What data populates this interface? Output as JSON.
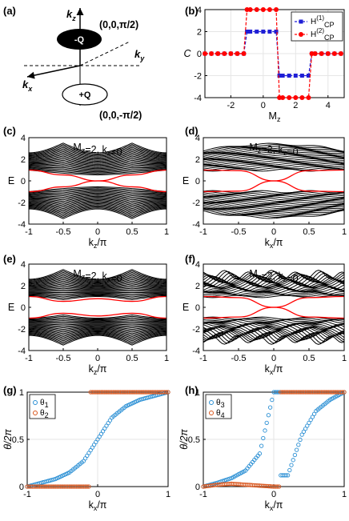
{
  "panel_labels": [
    "(a)",
    "(b)",
    "(c)",
    "(d)",
    "(e)",
    "(f)",
    "(g)",
    "(h)"
  ],
  "diagram": {
    "axis_kz": "k",
    "axis_kz_sub": "z",
    "axis_ky": "k",
    "axis_ky_sub": "y",
    "axis_kx": "k",
    "axis_kx_sub": "x",
    "top_point": "(0,0,π/2)",
    "top_charge": "-Q",
    "bottom_point": "(0,0,-π/2)",
    "bottom_charge": "+Q"
  },
  "colors": {
    "black": "#000000",
    "red": "#ff0000",
    "blue": "#1f1fd6",
    "orange": "#d9541a",
    "theta_blue": "#2a8fd4",
    "grid": "#e6e6e6"
  },
  "chart_data": [
    {
      "panel": "(b)",
      "type": "line",
      "ylabel": "C",
      "xlabel": "M",
      "xlabel_sub": "z",
      "xlim": [
        -3.6,
        5.0
      ],
      "ylim": [
        -4,
        4
      ],
      "xticks": [
        "-2",
        "0",
        "2",
        "4"
      ],
      "yticks": [
        "-4",
        "-2",
        "0",
        "2",
        "4"
      ],
      "grid": true,
      "legend_position": "top-right",
      "series": [
        {
          "name": "H",
          "name_sup": "(1)",
          "name_sub": "CP",
          "marker": "square",
          "color": "blue",
          "x": [
            -3.6,
            -3.2,
            -2.8,
            -2.4,
            -2.0,
            -1.6,
            -1.2,
            -1.0,
            -0.8,
            -0.4,
            0.0,
            0.4,
            0.8,
            1.0,
            1.2,
            1.6,
            2.0,
            2.4,
            2.8,
            3.0,
            3.2,
            3.6,
            4.0,
            4.4,
            4.8
          ],
          "y": [
            0,
            0,
            0,
            0,
            0,
            0,
            0,
            2,
            2,
            2,
            2,
            2,
            2,
            -2,
            -2,
            -2,
            -2,
            -2,
            -2,
            0,
            0,
            0,
            0,
            0,
            0
          ]
        },
        {
          "name": "H",
          "name_sup": "(2)",
          "name_sub": "CP",
          "marker": "circle",
          "color": "red",
          "x": [
            -3.6,
            -3.2,
            -2.8,
            -2.4,
            -2.0,
            -1.6,
            -1.2,
            -1.0,
            -0.8,
            -0.4,
            0.0,
            0.4,
            0.8,
            1.0,
            1.2,
            1.6,
            2.0,
            2.4,
            2.8,
            3.0,
            3.2,
            3.6,
            4.0,
            4.4,
            4.8
          ],
          "y": [
            0,
            0,
            0,
            0,
            0,
            0,
            0,
            4,
            4,
            4,
            4,
            4,
            4,
            -4,
            -4,
            -4,
            -4,
            -4,
            -4,
            0,
            0,
            0,
            0,
            0,
            0
          ]
        }
      ]
    },
    {
      "panel": "(c)",
      "type": "line",
      "annotation_1": "M",
      "annotation_1_sub": "z",
      "annotation_2": "=2, k",
      "annotation_2_sub": "x",
      "annotation_3": "=0",
      "ylabel": "E",
      "xlabel": "k",
      "xlabel_sub": "z",
      "xlabel_tail": "/π",
      "xlim": [
        -1,
        1
      ],
      "ylim": [
        -4,
        4
      ],
      "xticks": [
        "-1",
        "-0.5",
        "0",
        "0.5",
        "1"
      ],
      "yticks": [
        "-4",
        "-2",
        "0",
        "2",
        "4"
      ],
      "edge_states": [
        {
          "x": [
            -1,
            -0.5,
            0,
            0.5,
            1
          ],
          "y": [
            1.0,
            0.55,
            0.0,
            0.55,
            1.0
          ]
        },
        {
          "x": [
            -1,
            -0.5,
            0,
            0.5,
            1
          ],
          "y": [
            -1.0,
            -0.55,
            0.0,
            -0.55,
            -1.0
          ]
        }
      ]
    },
    {
      "panel": "(d)",
      "type": "line",
      "annotation_1": "M",
      "annotation_1_sub": "z",
      "annotation_2": "=2, k",
      "annotation_2_sub": "z",
      "annotation_3": "=0",
      "ylabel": "E",
      "xlabel": "k",
      "xlabel_sub": "x",
      "xlabel_tail": "/π",
      "xlim": [
        -1,
        1
      ],
      "ylim": [
        -4,
        4
      ],
      "xticks": [
        "-1",
        "-0.5",
        "0",
        "0.5",
        "1"
      ],
      "yticks": [
        "-4",
        "-2",
        "0",
        "2",
        "4"
      ],
      "edge_states": [
        {
          "x": [
            -1,
            -0.5,
            0,
            0.5,
            1
          ],
          "y": [
            1.0,
            0.95,
            0.0,
            -0.95,
            -1.0
          ]
        },
        {
          "x": [
            -1,
            -0.5,
            0,
            0.5,
            1
          ],
          "y": [
            -1.0,
            -0.95,
            0.0,
            0.95,
            1.0
          ]
        }
      ]
    },
    {
      "panel": "(e)",
      "type": "line",
      "annotation_1": "M",
      "annotation_1_sub": "z",
      "annotation_2": "=2, k",
      "annotation_2_sub": "x",
      "annotation_3": "=0",
      "ylabel": "E",
      "xlabel": "k",
      "xlabel_sub": "z",
      "xlabel_tail": "/π",
      "xlim": [
        -1,
        1
      ],
      "ylim": [
        -4,
        4
      ],
      "xticks": [
        "-1",
        "-0.5",
        "0",
        "0.5",
        "1"
      ],
      "yticks": [
        "-4",
        "-2",
        "0",
        "2",
        "4"
      ],
      "edge_states": [
        {
          "x": [
            -1,
            -0.5,
            0,
            0.5,
            1
          ],
          "y": [
            1.0,
            0.55,
            0.8,
            0.55,
            1.0
          ]
        },
        {
          "x": [
            -1,
            -0.5,
            0,
            0.5,
            1
          ],
          "y": [
            -1.0,
            -0.55,
            -0.8,
            -0.55,
            -1.0
          ]
        }
      ]
    },
    {
      "panel": "(f)",
      "type": "line",
      "annotation_1": "M",
      "annotation_1_sub": "z",
      "annotation_2": "=2, k",
      "annotation_2_sub": "z",
      "annotation_3": "=0",
      "ylabel": "E",
      "xlabel": "k",
      "xlabel_sub": "x",
      "xlabel_tail": "/π",
      "xlim": [
        -1,
        1
      ],
      "ylim": [
        -4,
        4
      ],
      "xticks": [
        "-1",
        "-0.5",
        "0",
        "0.5",
        "1"
      ],
      "yticks": [
        "-4",
        "-2",
        "0",
        "2",
        "4"
      ],
      "edge_states": [
        {
          "x": [
            -1,
            -0.5,
            0,
            0.5,
            1
          ],
          "y": [
            1.0,
            0.9,
            0.0,
            -0.9,
            -1.0
          ]
        },
        {
          "x": [
            -1,
            -0.5,
            0,
            0.5,
            1
          ],
          "y": [
            -1.0,
            -0.9,
            0.0,
            0.9,
            1.0
          ]
        }
      ]
    },
    {
      "panel": "(g)",
      "type": "scatter",
      "ylabel": "θ/2π",
      "xlabel": "k",
      "xlabel_sub": "x",
      "xlabel_tail": "/π",
      "xlim": [
        -1,
        1
      ],
      "ylim": [
        0,
        1
      ],
      "xticks": [
        "-1",
        "0",
        "1"
      ],
      "yticks": [
        "0",
        "0.5",
        "1"
      ],
      "grid": true,
      "legend_position": "top-left",
      "series": [
        {
          "name": "θ",
          "name_sub": "1",
          "color": "theta_blue",
          "x": [
            -1,
            -0.8,
            -0.6,
            -0.4,
            -0.2,
            0,
            0.2,
            0.4,
            0.6,
            0.8,
            1
          ],
          "y": [
            0.0,
            0.04,
            0.08,
            0.15,
            0.27,
            0.5,
            0.73,
            0.85,
            0.92,
            0.96,
            1.0
          ]
        },
        {
          "name": "θ",
          "name_sub": "2",
          "color": "orange",
          "x": [
            -1,
            -0.8,
            -0.6,
            -0.4,
            -0.2,
            0,
            0.2,
            0.4,
            0.6,
            0.8,
            1
          ],
          "y": [
            0.0,
            0.0,
            0.0,
            0.0,
            0.0,
            1.0,
            1.0,
            1.0,
            1.0,
            1.0,
            1.0
          ]
        }
      ]
    },
    {
      "panel": "(h)",
      "type": "scatter",
      "ylabel": "θ/2π",
      "xlabel": "k",
      "xlabel_sub": "x",
      "xlabel_tail": "/π",
      "xlim": [
        -1,
        1
      ],
      "ylim": [
        0,
        1
      ],
      "xticks": [
        "-1",
        "0",
        "1"
      ],
      "yticks": [
        "0",
        "0.5",
        "1"
      ],
      "grid": true,
      "legend_position": "top-left",
      "series": [
        {
          "name": "θ",
          "name_sub": "3",
          "color": "theta_blue",
          "x": [
            -1,
            -0.8,
            -0.6,
            -0.4,
            -0.2,
            0,
            0.2,
            0.4,
            0.6,
            0.8,
            1
          ],
          "y": [
            0.0,
            0.04,
            0.09,
            0.17,
            0.35,
            1.0,
            0.12,
            0.55,
            0.8,
            0.92,
            1.0
          ]
        },
        {
          "name": "θ",
          "name_sub": "4",
          "color": "orange",
          "x": [
            -1,
            -0.8,
            -0.6,
            -0.4,
            -0.2,
            0,
            0.2,
            0.4,
            0.6,
            0.8,
            1
          ],
          "y": [
            0.0,
            0.02,
            0.03,
            0.02,
            0.01,
            0.0,
            1.0,
            1.0,
            1.0,
            1.0,
            1.0
          ]
        }
      ]
    }
  ]
}
